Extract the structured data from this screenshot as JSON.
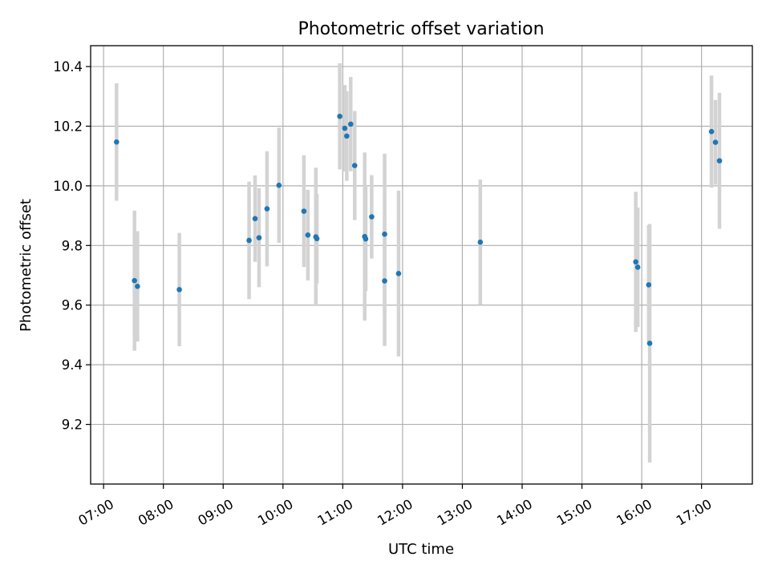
{
  "chart_data": {
    "type": "scatter",
    "title": "Photometric offset variation",
    "xlabel": "UTC time",
    "ylabel": "Photometric offset",
    "xlim": [
      "06:47",
      "17:51"
    ],
    "ylim": [
      9.0,
      10.47
    ],
    "grid": true,
    "legend": "none",
    "x_ticks": [
      "07:00",
      "08:00",
      "09:00",
      "10:00",
      "11:00",
      "12:00",
      "13:00",
      "14:00",
      "15:00",
      "16:00",
      "17:00"
    ],
    "y_ticks": [
      "9.2",
      "9.4",
      "9.6",
      "9.8",
      "10.0",
      "10.2",
      "10.4"
    ],
    "colors": {
      "point": "#1f77b4",
      "error_bar": "#d3d3d3"
    },
    "series": [
      {
        "points": [
          {
            "x": "07:13",
            "y": 10.147,
            "yerr": 0.197
          },
          {
            "x": "07:31",
            "y": 9.682,
            "yerr": 0.235
          },
          {
            "x": "07:34",
            "y": 9.663,
            "yerr": 0.185
          },
          {
            "x": "08:16",
            "y": 9.652,
            "yerr": 0.19
          },
          {
            "x": "09:26",
            "y": 9.817,
            "yerr": 0.197
          },
          {
            "x": "09:32",
            "y": 9.89,
            "yerr": 0.145
          },
          {
            "x": "09:36",
            "y": 9.826,
            "yerr": 0.166
          },
          {
            "x": "09:44",
            "y": 9.923,
            "yerr": 0.193
          },
          {
            "x": "09:56",
            "y": 10.002,
            "yerr": 0.193
          },
          {
            "x": "10:21",
            "y": 9.915,
            "yerr": 0.187
          },
          {
            "x": "10:25",
            "y": 9.835,
            "yerr": 0.152
          },
          {
            "x": "10:33",
            "y": 9.829,
            "yerr": 0.232
          },
          {
            "x": "10:34",
            "y": 9.823,
            "yerr": 0.15
          },
          {
            "x": "10:57",
            "y": 10.233,
            "yerr": 0.178
          },
          {
            "x": "11:02",
            "y": 10.193,
            "yerr": 0.145
          },
          {
            "x": "11:04",
            "y": 10.167,
            "yerr": 0.15
          },
          {
            "x": "11:08",
            "y": 10.207,
            "yerr": 0.158
          },
          {
            "x": "11:12",
            "y": 10.068,
            "yerr": 0.183
          },
          {
            "x": "11:22",
            "y": 9.83,
            "yerr": 0.282
          },
          {
            "x": "11:23",
            "y": 9.822,
            "yerr": 0.175
          },
          {
            "x": "11:29",
            "y": 9.896,
            "yerr": 0.14
          },
          {
            "x": "11:42",
            "y": 9.838,
            "yerr": 0.27
          },
          {
            "x": "11:42",
            "y": 9.681,
            "yerr": 0.218
          },
          {
            "x": "11:56",
            "y": 9.706,
            "yerr": 0.278
          },
          {
            "x": "13:18",
            "y": 9.811,
            "yerr": 0.21
          },
          {
            "x": "15:54",
            "y": 9.745,
            "yerr": 0.235
          },
          {
            "x": "15:56",
            "y": 9.727,
            "yerr": 0.2
          },
          {
            "x": "16:07",
            "y": 9.668,
            "yerr": 0.2
          },
          {
            "x": "16:08",
            "y": 9.472,
            "yerr": 0.4
          },
          {
            "x": "17:10",
            "y": 10.182,
            "yerr": 0.188
          },
          {
            "x": "17:14",
            "y": 10.146,
            "yerr": 0.142
          },
          {
            "x": "17:18",
            "y": 10.084,
            "yerr": 0.228
          }
        ]
      }
    ]
  }
}
